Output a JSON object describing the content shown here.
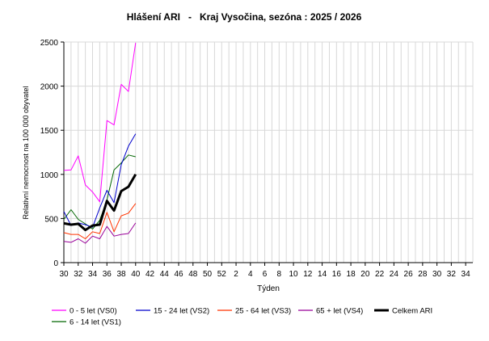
{
  "chart_data": {
    "type": "line",
    "title": "Hlášení ARI   -   Kraj Vysočina, sezóna : 2025 / 2026",
    "xlabel": "Týden",
    "ylabel": "Relativní nemocnost na 100 000 obyvatel",
    "ylim": [
      0,
      2500
    ],
    "yticks": [
      0,
      500,
      1000,
      1500,
      2000,
      2500
    ],
    "grid": true,
    "legend_position": "bottom",
    "x_weeks": [
      30,
      31,
      32,
      33,
      34,
      35,
      36,
      37,
      38,
      39,
      40,
      41,
      42,
      43,
      44,
      45,
      46,
      47,
      48,
      49,
      50,
      51,
      52,
      1,
      2,
      3,
      4,
      5,
      6,
      7,
      8,
      9,
      10,
      11,
      12,
      13,
      14,
      15,
      16,
      17,
      18,
      19,
      20,
      21,
      22,
      23,
      24,
      25,
      26,
      27,
      28,
      29,
      30,
      31,
      32,
      33,
      34,
      35
    ],
    "x_tick_labels": [
      "30",
      "32",
      "34",
      "36",
      "38",
      "40",
      "42",
      "44",
      "46",
      "48",
      "50",
      "52",
      "2",
      "4",
      "6",
      "8",
      "10",
      "12",
      "14",
      "16",
      "18",
      "20",
      "22",
      "24",
      "26",
      "28",
      "30",
      "32",
      "34"
    ],
    "series": [
      {
        "name": "0 - 5 let (VS0)",
        "color": "#ff00ff",
        "width": 1,
        "values": [
          1045,
          1050,
          1210,
          880,
          800,
          690,
          1610,
          1560,
          2020,
          1940,
          2490
        ]
      },
      {
        "name": "15 - 24 let (VS2)",
        "color": "#0000cc",
        "width": 1,
        "values": [
          580,
          420,
          450,
          430,
          400,
          620,
          820,
          680,
          1110,
          1320,
          1460
        ]
      },
      {
        "name": "25 - 64 let (VS3)",
        "color": "#ff3300",
        "width": 1,
        "values": [
          340,
          320,
          320,
          270,
          350,
          330,
          570,
          350,
          530,
          560,
          670
        ]
      },
      {
        "name": "65 + let (VS4)",
        "color": "#990099",
        "width": 1,
        "values": [
          240,
          230,
          270,
          220,
          300,
          270,
          410,
          300,
          320,
          330,
          450
        ]
      },
      {
        "name": "Celkem ARI",
        "color": "#000000",
        "width": 3,
        "values": [
          445,
          430,
          440,
          370,
          420,
          430,
          700,
          590,
          810,
          860,
          1000
        ]
      },
      {
        "name": "6 - 14 let (VS1)",
        "color": "#006600",
        "width": 1,
        "values": [
          490,
          600,
          490,
          440,
          380,
          480,
          710,
          1050,
          1130,
          1220,
          1200
        ]
      }
    ]
  }
}
